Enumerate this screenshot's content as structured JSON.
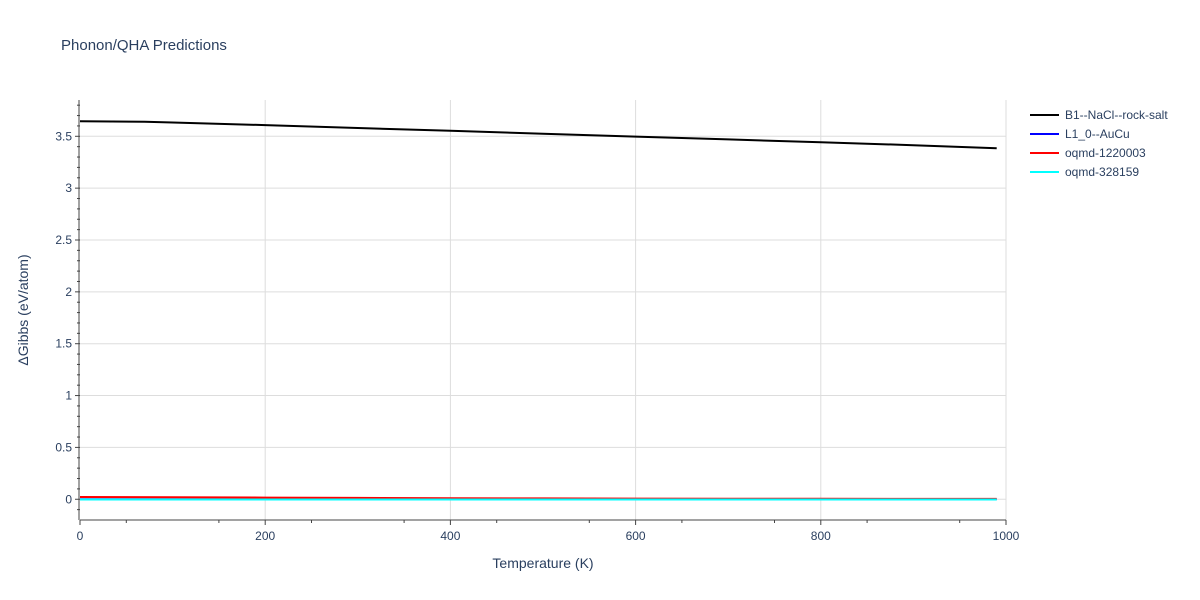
{
  "chart_data": {
    "type": "line",
    "title": "Phonon/QHA Predictions",
    "xlabel": "Temperature (K)",
    "ylabel": "ΔGibbs (eV/atom)",
    "xlim": [
      0,
      1000
    ],
    "ylim": [
      -0.2,
      3.85
    ],
    "x_ticks": [
      0,
      200,
      400,
      600,
      800,
      1000
    ],
    "x_tick_labels": [
      "0",
      "200",
      "400",
      "600",
      "800",
      "1000"
    ],
    "y_ticks": [
      0,
      0.5,
      1,
      1.5,
      2,
      2.5,
      3,
      3.5
    ],
    "y_tick_labels": [
      "0",
      "0.5",
      "1",
      "1.5",
      "2",
      "2.5",
      "3",
      "3.5"
    ],
    "grid": true,
    "legend_position": "top-right",
    "series": [
      {
        "name": "B1--NaCl--rock-salt",
        "color": "#000000",
        "x": [
          0,
          70,
          100,
          200,
          300,
          400,
          500,
          600,
          700,
          800,
          900,
          990
        ],
        "y": [
          3.645,
          3.64,
          3.633,
          3.608,
          3.58,
          3.553,
          3.525,
          3.497,
          3.47,
          3.442,
          3.414,
          3.385
        ]
      },
      {
        "name": "L1_0--AuCu",
        "color": "#0000ff",
        "x": [
          0,
          200,
          400,
          600,
          800,
          990
        ],
        "y": [
          0.0,
          0.0,
          0.0,
          0.0,
          0.0,
          0.0
        ]
      },
      {
        "name": "oqmd-1220003",
        "color": "#ff0000",
        "x": [
          0,
          100,
          200,
          300,
          400,
          500,
          600,
          700,
          800,
          900,
          990
        ],
        "y": [
          0.022,
          0.02,
          0.016,
          0.013,
          0.01,
          0.008,
          0.006,
          0.005,
          0.004,
          0.003,
          0.003
        ]
      },
      {
        "name": "oqmd-328159",
        "color": "#00ffff",
        "x": [
          0,
          200,
          400,
          600,
          800,
          990
        ],
        "y": [
          -0.002,
          -0.002,
          -0.002,
          -0.002,
          -0.002,
          -0.002
        ]
      }
    ]
  }
}
